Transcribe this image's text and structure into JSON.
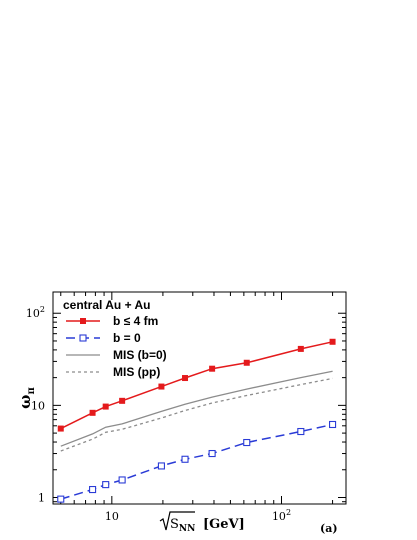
{
  "chart_data": {
    "type": "line",
    "x_scale": "log",
    "y_scale": "log",
    "xlim": [
      4.5,
      240
    ],
    "ylim": [
      0.85,
      170
    ],
    "xlabel_main": "S",
    "xlabel_sub": "NN",
    "xlabel_unit": "[GeV]",
    "ylabel_main": "ω",
    "ylabel_sub": "π",
    "panel_label": "(a)",
    "legend_header": "central Au + Au",
    "legend_placement": "top-left",
    "x_ticks": [
      {
        "value": 10,
        "base": "10",
        "exp": ""
      },
      {
        "value": 100,
        "base": "10",
        "exp": "2"
      }
    ],
    "y_ticks": [
      {
        "value": 1,
        "base": "1",
        "exp": ""
      },
      {
        "value": 10,
        "base": "10",
        "exp": ""
      },
      {
        "value": 100,
        "base": "10",
        "exp": "2"
      }
    ],
    "series": [
      {
        "name": "b ≤ 4 fm",
        "color": "#e41a1c",
        "dash": "",
        "marker": "filled-square",
        "x": [
          5,
          7.7,
          9.2,
          11.5,
          19.6,
          27,
          39,
          62.4,
          130,
          200
        ],
        "y": [
          5.6,
          8.3,
          9.7,
          11.2,
          16,
          19.8,
          25,
          29,
          41,
          49
        ]
      },
      {
        "name": "b = 0",
        "color": "#2a3bd6",
        "dash": "9,5",
        "marker": "open-square",
        "x": [
          5,
          7.7,
          9.2,
          11.5,
          19.6,
          27,
          39,
          62.4,
          130,
          200
        ],
        "y": [
          0.96,
          1.22,
          1.38,
          1.55,
          2.2,
          2.6,
          3.0,
          3.95,
          5.2,
          6.2
        ]
      },
      {
        "name": "MIS (b=0)",
        "color": "#8c8c8c",
        "dash": "",
        "marker": "none",
        "x": [
          5,
          7.7,
          9.2,
          11.5,
          19.6,
          27,
          39,
          62.4,
          130,
          200
        ],
        "y": [
          3.6,
          4.9,
          5.8,
          6.3,
          8.6,
          10.3,
          12.3,
          15,
          20,
          23.5
        ]
      },
      {
        "name": "MIS (pp)",
        "color": "#8c8c8c",
        "dash": "3,3",
        "marker": "none",
        "x": [
          5,
          7.7,
          9.2,
          11.5,
          19.6,
          27,
          39,
          62.4,
          130,
          200
        ],
        "y": [
          3.2,
          4.3,
          5.1,
          5.5,
          7.3,
          8.8,
          10.6,
          12.8,
          16.8,
          19.6
        ]
      }
    ]
  }
}
